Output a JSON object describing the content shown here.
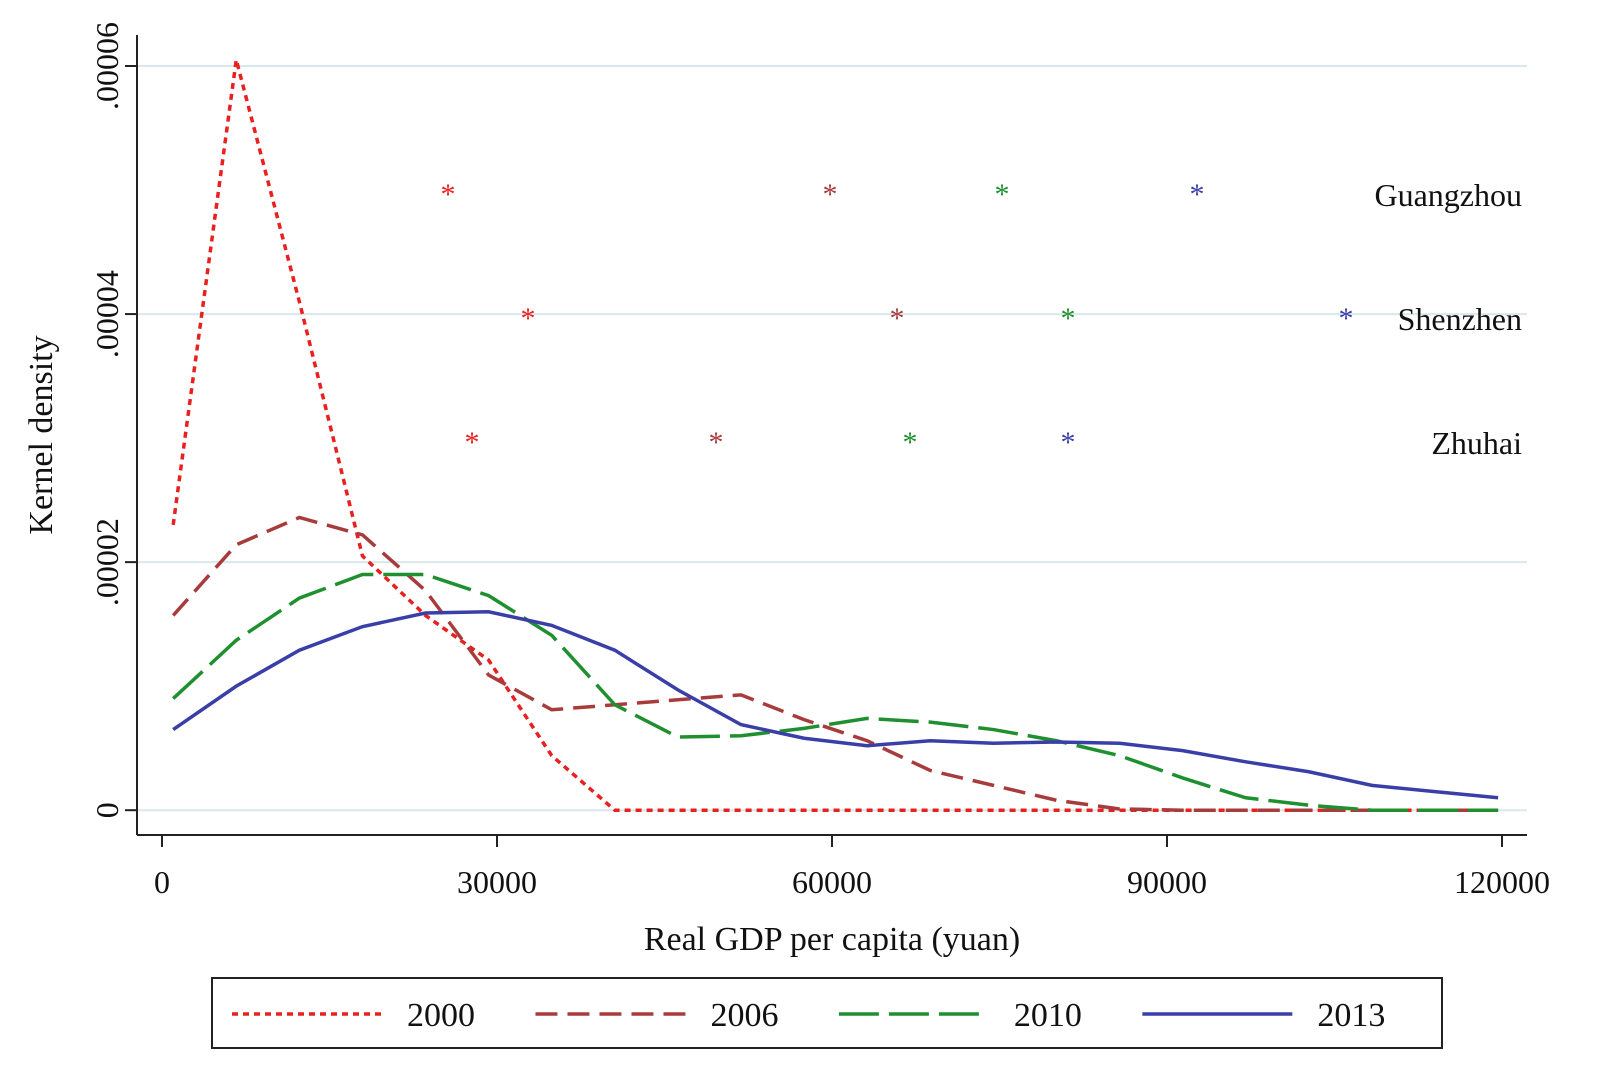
{
  "chart_data": {
    "type": "line",
    "x_label": "Real GDP per capita (yuan)",
    "y_label": "Kernel density",
    "xlim": [
      -2240,
      122240
    ],
    "ylim": [
      -2e-06,
      6.25e-05
    ],
    "xticks": [
      0,
      30000,
      60000,
      90000,
      120000
    ],
    "yticks": [
      0,
      {
        "value": 2e-05,
        "label": ".00002"
      },
      {
        "value": 4e-05,
        "label": ".00004"
      },
      {
        "value": 6e-05,
        "label": ".00006"
      }
    ],
    "grid": true,
    "legend": "bottom",
    "x": [
      1000,
      6650,
      12300,
      17950,
      23600,
      29250,
      34900,
      40550,
      46200,
      51850,
      57500,
      63150,
      68800,
      74450,
      80100,
      85750,
      91400,
      97050,
      102700,
      108350,
      114000,
      119650
    ],
    "markers": {
      "labels": [
        "Guangzhou",
        "Shenzhen",
        "Zhuhai"
      ],
      "y": [
        5e-05,
        4e-05,
        3e-05
      ]
    },
    "series": [
      {
        "name": "2000",
        "color": "#e8201e",
        "dash": "6 5",
        "city_x": [
          25610,
          32780,
          27760
        ],
        "values": [
          2.3e-05,
          6.05e-05,
          4.1e-05,
          2.05e-05,
          1.57e-05,
          1.21e-05,
          4.4e-06,
          0,
          0,
          0,
          0,
          0,
          0,
          0,
          0,
          0,
          0,
          0,
          0,
          0,
          0,
          0
        ]
      },
      {
        "name": "2006",
        "color": "#a83c3c",
        "dash": "22 10",
        "city_x": [
          59820,
          65820,
          49610
        ],
        "values": [
          1.57e-05,
          2.14e-05,
          2.36e-05,
          2.22e-05,
          1.77e-05,
          1.09e-05,
          8.1e-06,
          8.5e-06,
          8.9e-06,
          9.3e-06,
          7.3e-06,
          5.6e-06,
          3.2e-06,
          2e-06,
          8e-07,
          1e-07,
          0,
          0,
          0,
          0,
          0,
          0
        ]
      },
      {
        "name": "2010",
        "color": "#1f8f2f",
        "dash": "40 10",
        "city_x": [
          75220,
          81130,
          66990
        ],
        "values": [
          9e-06,
          1.37e-05,
          1.71e-05,
          1.9e-05,
          1.9e-05,
          1.73e-05,
          1.41e-05,
          8.5e-06,
          5.9e-06,
          6e-06,
          6.6e-06,
          7.4e-06,
          7.1e-06,
          6.5e-06,
          5.6e-06,
          4.4e-06,
          2.6e-06,
          1e-06,
          4e-07,
          0,
          0,
          0
        ]
      },
      {
        "name": "2013",
        "color": "#3a3fa8",
        "dash": "",
        "city_x": [
          92690,
          106030,
          81130
        ],
        "values": [
          6.5e-06,
          1e-05,
          1.29e-05,
          1.48e-05,
          1.59e-05,
          1.6e-05,
          1.49e-05,
          1.29e-05,
          9.7e-06,
          6.9e-06,
          5.8e-06,
          5.2e-06,
          5.6e-06,
          5.4e-06,
          5.5e-06,
          5.4e-06,
          4.8e-06,
          3.9e-06,
          3.1e-06,
          2e-06,
          1.5e-06,
          1e-06
        ]
      }
    ]
  }
}
